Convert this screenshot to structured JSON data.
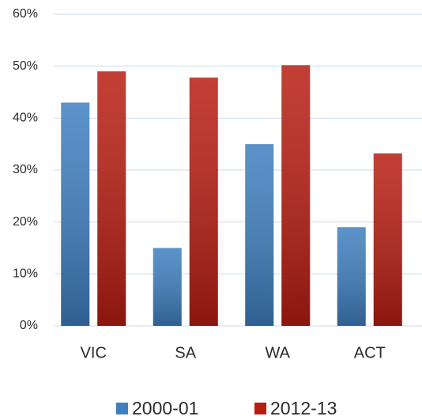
{
  "chart_data": {
    "type": "bar",
    "categories": [
      "VIC",
      "SA",
      "WA",
      "ACT"
    ],
    "series": [
      {
        "name": "2000-01",
        "color": "#3f7fc0",
        "values": [
          43,
          15,
          35,
          19
        ]
      },
      {
        "name": "2012-13",
        "color": "#b81d12",
        "values": [
          49,
          47.8,
          50.2,
          33.2
        ]
      }
    ],
    "ylim": [
      0,
      60
    ],
    "yticks": [
      {
        "value": 0,
        "label": "0%"
      },
      {
        "value": 10,
        "label": "10%"
      },
      {
        "value": 20,
        "label": "20%"
      },
      {
        "value": 30,
        "label": "30%"
      },
      {
        "value": 40,
        "label": "40%"
      },
      {
        "value": 50,
        "label": "50%"
      },
      {
        "value": 60,
        "label": "60%"
      }
    ],
    "grid": true,
    "legend": "bottom"
  }
}
